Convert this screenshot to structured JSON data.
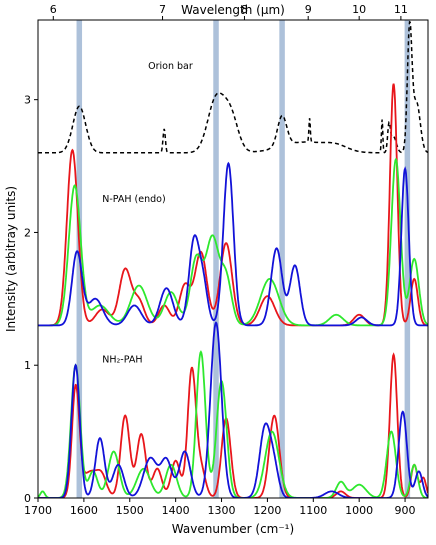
{
  "chart_data": {
    "type": "line",
    "x_unit": "cm^-1",
    "xlabel": "Wavenumber (cm⁻¹)",
    "ylabel": "Intensity (arbitray units)",
    "top_axis_label": "Wavelength (μm)",
    "xlim": [
      1700,
      850
    ],
    "ylim": [
      0,
      3.6
    ],
    "x_ticks": [
      1700,
      1600,
      1500,
      1400,
      1300,
      1200,
      1100,
      1000,
      900
    ],
    "y_ticks": [
      0,
      1,
      2,
      3
    ],
    "top_ticks": [
      6,
      7,
      8,
      9,
      10,
      11
    ],
    "annotations": [
      {
        "text": "Orion bar",
        "x": 1460,
        "y": 3.23
      },
      {
        "text": "N-PAH (endo)",
        "x": 1560,
        "y": 2.23
      },
      {
        "text": "NH₂-PAH",
        "x": 1560,
        "y": 1.02
      }
    ],
    "bands": [
      {
        "center": 1610,
        "color": "#9fb6d3"
      },
      {
        "center": 1312,
        "color": "#9fb6d3"
      },
      {
        "center": 1168,
        "color": "#9fb6d3"
      },
      {
        "center": 895,
        "color": "#9fb6d3"
      }
    ],
    "colors": {
      "red": "#e8161b",
      "green": "#2ee82e",
      "blue": "#1212d8",
      "black": "#000000"
    },
    "series": [
      {
        "color": "black",
        "style": "dashed",
        "baseline": 2.6,
        "peaks": [
          [
            1610,
            0.35,
            14
          ],
          [
            1425,
            0.18,
            2.5
          ],
          [
            1312,
            0.4,
            18
          ],
          [
            1280,
            0.27,
            16
          ],
          [
            1168,
            0.23,
            10
          ],
          [
            1120,
            0.08,
            50
          ],
          [
            1108,
            0.18,
            1.5
          ],
          [
            1050,
            0.04,
            25
          ],
          [
            950,
            0.25,
            1.5
          ],
          [
            935,
            0.2,
            3
          ],
          [
            925,
            0.12,
            6
          ],
          [
            890,
            0.92,
            5
          ],
          [
            875,
            0.38,
            8
          ]
        ]
      },
      {
        "color": "red",
        "baseline": 1.3,
        "peaks": [
          [
            1625,
            1.32,
            12
          ],
          [
            1560,
            0.12,
            15
          ],
          [
            1510,
            0.42,
            13
          ],
          [
            1480,
            0.18,
            12
          ],
          [
            1425,
            0.15,
            12
          ],
          [
            1380,
            0.3,
            12
          ],
          [
            1345,
            0.55,
            13
          ],
          [
            1290,
            0.62,
            13
          ],
          [
            1200,
            0.22,
            16
          ],
          [
            1000,
            0.08,
            12
          ],
          [
            925,
            1.82,
            8
          ],
          [
            880,
            0.35,
            8
          ]
        ]
      },
      {
        "color": "green",
        "baseline": 1.3,
        "peaks": [
          [
            1620,
            1.05,
            13
          ],
          [
            1565,
            0.15,
            20
          ],
          [
            1480,
            0.3,
            18
          ],
          [
            1410,
            0.25,
            15
          ],
          [
            1355,
            0.5,
            13
          ],
          [
            1320,
            0.65,
            14
          ],
          [
            1290,
            0.35,
            12
          ],
          [
            1195,
            0.35,
            20
          ],
          [
            1050,
            0.08,
            15
          ],
          [
            920,
            1.25,
            10
          ],
          [
            880,
            0.5,
            10
          ]
        ]
      },
      {
        "color": "blue",
        "baseline": 1.3,
        "peaks": [
          [
            1615,
            0.55,
            11
          ],
          [
            1575,
            0.2,
            16
          ],
          [
            1490,
            0.15,
            15
          ],
          [
            1420,
            0.28,
            14
          ],
          [
            1360,
            0.63,
            11
          ],
          [
            1340,
            0.3,
            10
          ],
          [
            1285,
            1.22,
            11
          ],
          [
            1180,
            0.58,
            12
          ],
          [
            1140,
            0.45,
            11
          ],
          [
            995,
            0.06,
            12
          ],
          [
            900,
            1.18,
            8
          ]
        ]
      },
      {
        "color": "red",
        "baseline": 0.0,
        "peaks": [
          [
            1618,
            0.8,
            8
          ],
          [
            1585,
            0.2,
            20
          ],
          [
            1560,
            0.1,
            10
          ],
          [
            1510,
            0.62,
            10
          ],
          [
            1475,
            0.48,
            10
          ],
          [
            1440,
            0.22,
            10
          ],
          [
            1400,
            0.28,
            10
          ],
          [
            1365,
            0.95,
            9
          ],
          [
            1345,
            0.22,
            10
          ],
          [
            1290,
            0.6,
            10
          ],
          [
            1185,
            0.62,
            11
          ],
          [
            1040,
            0.05,
            10
          ],
          [
            925,
            1.08,
            8
          ],
          [
            880,
            0.25,
            7
          ],
          [
            860,
            0.15,
            6
          ]
        ]
      },
      {
        "color": "green",
        "baseline": 0.0,
        "peaks": [
          [
            1690,
            0.05,
            5
          ],
          [
            1618,
            1.0,
            10
          ],
          [
            1580,
            0.2,
            10
          ],
          [
            1535,
            0.35,
            12
          ],
          [
            1470,
            0.22,
            15
          ],
          [
            1410,
            0.25,
            12
          ],
          [
            1345,
            1.1,
            10
          ],
          [
            1300,
            0.88,
            11
          ],
          [
            1190,
            0.5,
            15
          ],
          [
            1040,
            0.12,
            10
          ],
          [
            1000,
            0.1,
            15
          ],
          [
            930,
            0.5,
            10
          ],
          [
            880,
            0.25,
            8
          ]
        ]
      },
      {
        "color": "blue",
        "baseline": 0.0,
        "peaks": [
          [
            1618,
            1.0,
            9
          ],
          [
            1565,
            0.45,
            10
          ],
          [
            1525,
            0.25,
            12
          ],
          [
            1455,
            0.3,
            15
          ],
          [
            1420,
            0.28,
            12
          ],
          [
            1380,
            0.35,
            12
          ],
          [
            1312,
            1.32,
            12
          ],
          [
            1205,
            0.53,
            12
          ],
          [
            1185,
            0.2,
            10
          ],
          [
            1060,
            0.05,
            15
          ],
          [
            905,
            0.65,
            9
          ],
          [
            870,
            0.2,
            8
          ]
        ]
      }
    ]
  }
}
